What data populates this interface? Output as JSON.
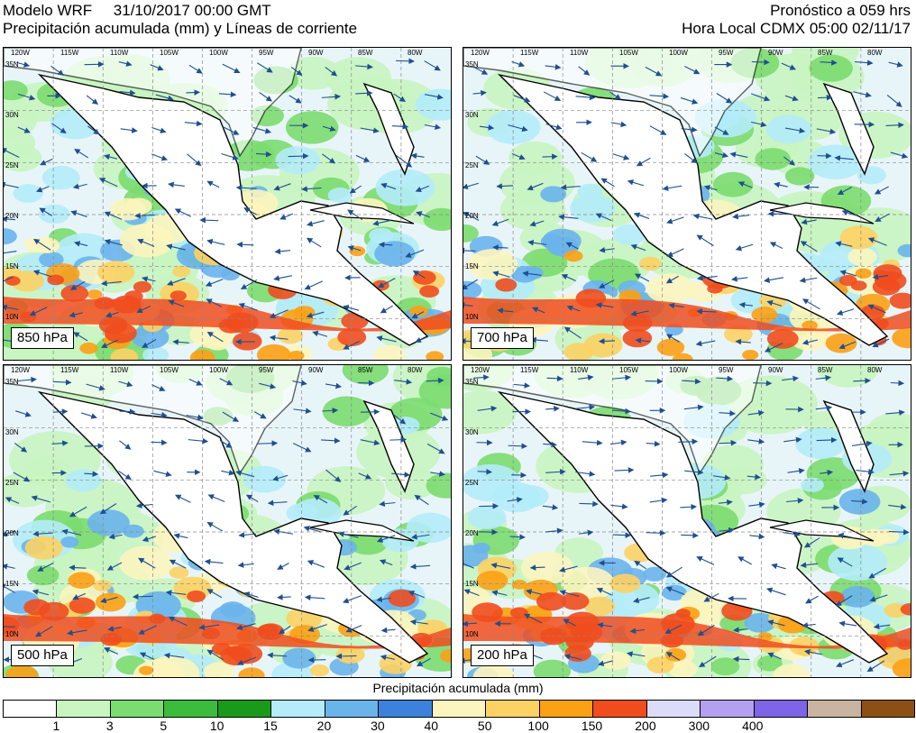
{
  "header": {
    "line1_left": "Modelo WRF     31/10/2017 00:00 GMT",
    "line2_left": "Precipitación acumulada (mm) y Líneas de corriente",
    "line1_right": "Pronóstico a 059 hrs",
    "line2_right": "Hora Local CDMX 05:00 02/11/17"
  },
  "panels": [
    {
      "label": "850 hPa"
    },
    {
      "label": "700 hPa"
    },
    {
      "label": "500 hPa"
    },
    {
      "label": "200 hPa"
    }
  ],
  "lon_ticks": [
    "120W",
    "115W",
    "110W",
    "105W",
    "100W",
    "95W",
    "90W",
    "85W",
    "80W"
  ],
  "lat_ticks": [
    "35N",
    "30N",
    "25N",
    "20N",
    "15N",
    "10N"
  ],
  "legend": {
    "title": "Precipitación acumulada (mm)",
    "labels": [
      "1",
      "3",
      "5",
      "10",
      "15",
      "20",
      "30",
      "40",
      "50",
      "100",
      "150",
      "200",
      "300",
      "400"
    ],
    "colors": [
      "#ffffff",
      "#c8f5c0",
      "#7bdc6f",
      "#3cbc3c",
      "#1a9a1a",
      "#b4ecfa",
      "#6ab4ec",
      "#3c82dc",
      "#fcf5be",
      "#fcd264",
      "#fca014",
      "#f04c1e",
      "#dcdcfa",
      "#b4a0f0",
      "#7e64e6",
      "#c8b4a0",
      "#8c5014"
    ]
  }
}
